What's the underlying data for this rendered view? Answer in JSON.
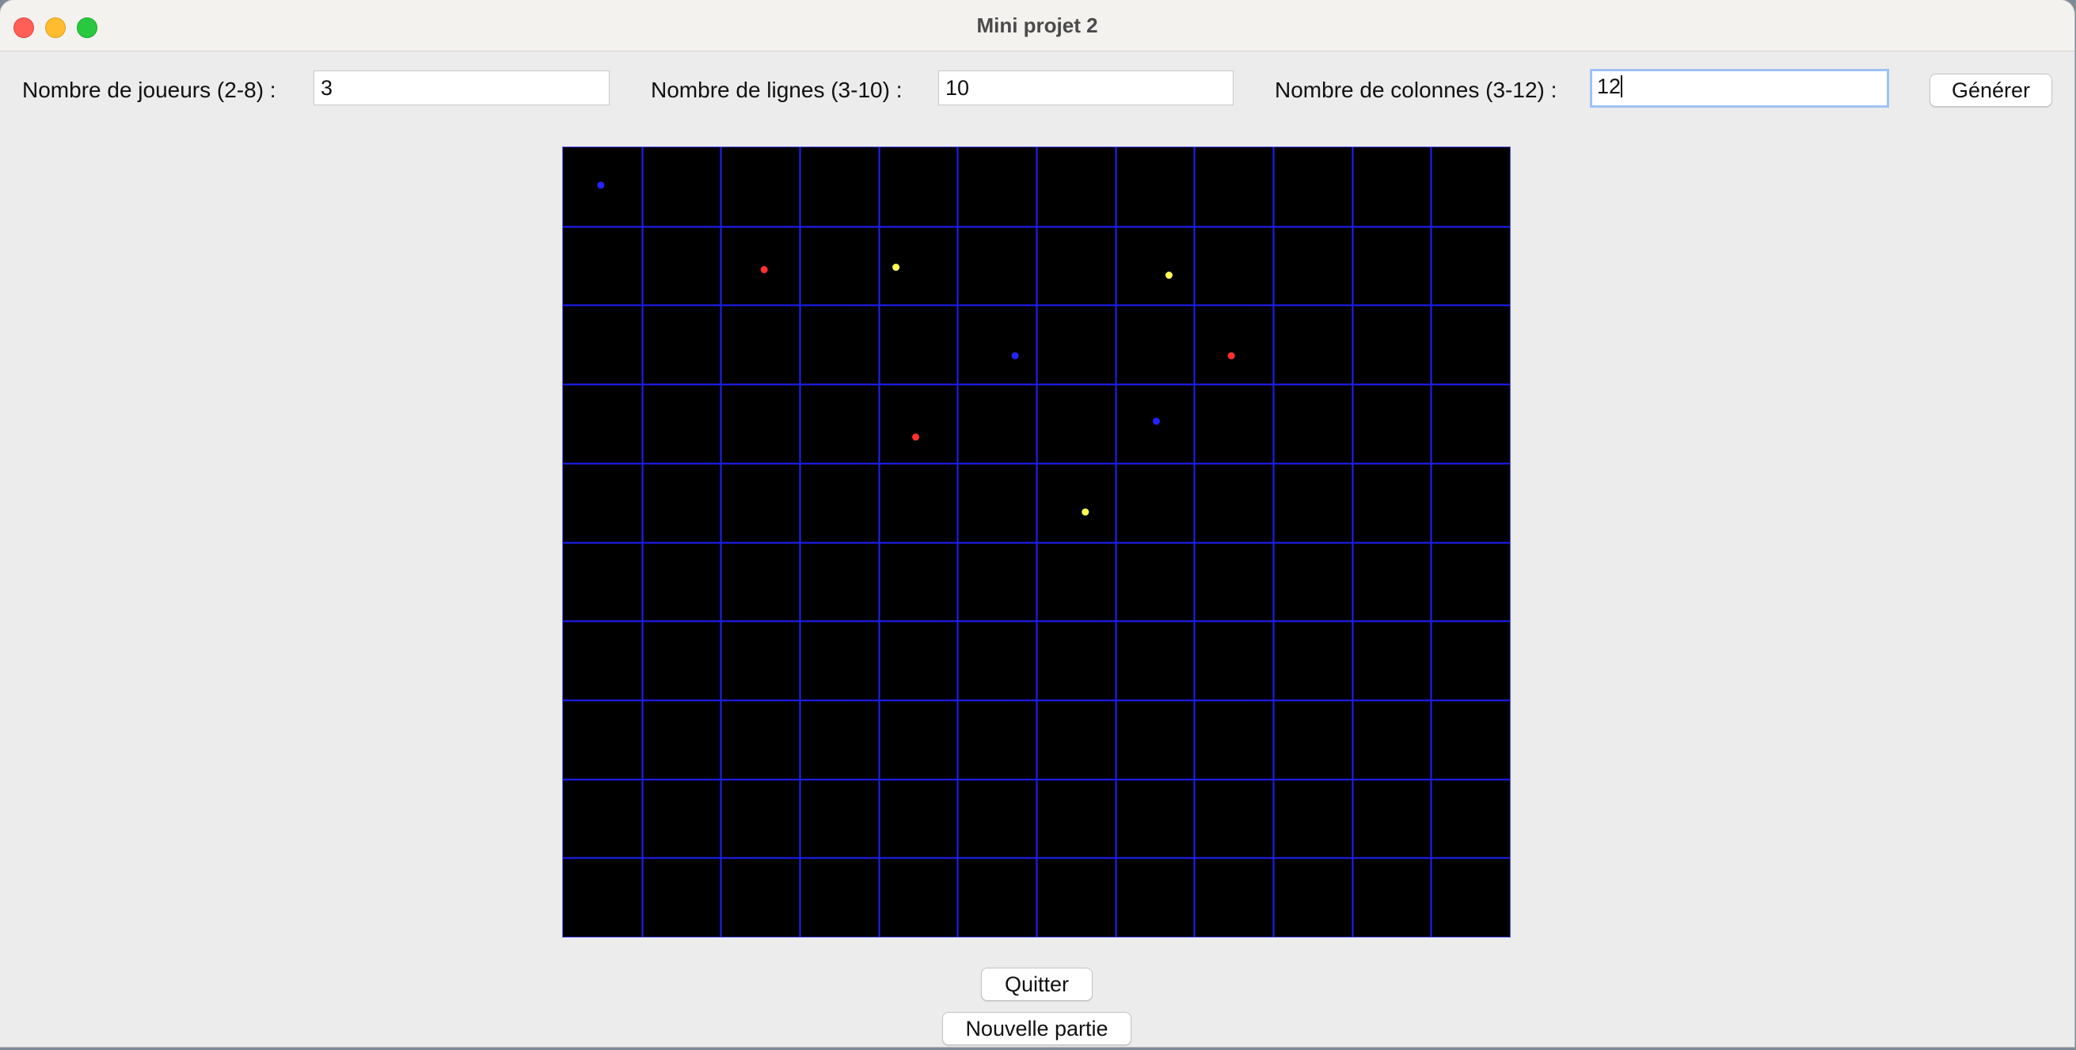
{
  "window": {
    "title": "Mini projet 2"
  },
  "form": {
    "players_label": "Nombre de joueurs (2-8) :",
    "players_value": "3",
    "rows_label": "Nombre de lignes (3-10) :",
    "rows_value": "10",
    "cols_label": "Nombre de colonnes (3-12) :",
    "cols_value": "12",
    "generate_label": "Générer"
  },
  "board": {
    "rows": 10,
    "cols": 12,
    "background": "#000000",
    "grid_color": "#1f1fff",
    "pieces": [
      {
        "color": "#2424ff",
        "row": 0,
        "col": 0
      },
      {
        "color": "#ff3030",
        "row": 1,
        "col": 2
      },
      {
        "color": "#ffff55",
        "row": 1,
        "col": 4
      },
      {
        "color": "#ffff55",
        "row": 1,
        "col": 7
      },
      {
        "color": "#2424ff",
        "row": 2,
        "col": 5
      },
      {
        "color": "#ff3030",
        "row": 2,
        "col": 8
      },
      {
        "color": "#ff3030",
        "row": 3,
        "col": 4
      },
      {
        "color": "#2424ff",
        "row": 3,
        "col": 7
      },
      {
        "color": "#ffff55",
        "row": 4,
        "col": 6
      }
    ]
  },
  "buttons": {
    "quit_label": "Quitter",
    "new_game_label": "Nouvelle partie"
  }
}
